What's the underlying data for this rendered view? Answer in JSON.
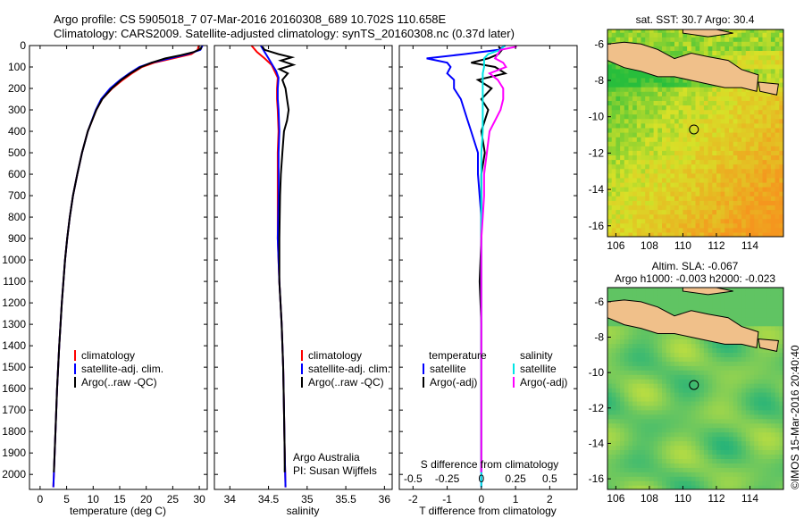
{
  "header": {
    "title_line1": "Argo profile: CS 5905018_7 07-Mar-2016 20160308_689 10.702S 110.658E",
    "title_line2": "Climatology: CARS2009. Satellite-adjusted climatology: synTS_20160308.nc (0.37d later)"
  },
  "depth_axis": {
    "ticks": [
      0,
      100,
      200,
      300,
      400,
      500,
      600,
      700,
      800,
      900,
      1000,
      1100,
      1200,
      1300,
      1400,
      1500,
      1600,
      1700,
      1800,
      1900,
      2000
    ],
    "range": [
      0,
      2070
    ],
    "inverted": true
  },
  "colors": {
    "climatology": "#ff0000",
    "satellite": "#0000ff",
    "argo": "#000000",
    "cyan": "#00e5e5",
    "magenta": "#ff00ff",
    "land": "#f0c08a"
  },
  "panels": {
    "temperature": {
      "xlabel": "temperature (deg C)",
      "xticks": [
        0,
        5,
        10,
        15,
        20,
        25,
        30
      ],
      "xlim": [
        -2,
        31.5
      ],
      "legend": [
        "climatology",
        "satellite-adj. clim.",
        "Argo(..raw -QC)"
      ]
    },
    "salinity": {
      "xlabel": "salinity",
      "xticks": [
        "34",
        "34.5",
        "35",
        "35.5",
        "36"
      ],
      "xlim": [
        33.8,
        36.1
      ],
      "legend": [
        "climatology",
        "satellite-adj. clim.",
        "Argo(..raw -QC)"
      ],
      "note1": "Argo Australia",
      "note2": "PI: Susan Wijffels"
    },
    "difference": {
      "xlabel": "T difference from climatology",
      "top_label": "S difference from climatology",
      "top_ticks": [
        "-0.5",
        "-0.25",
        "0",
        "0.25",
        "0.5"
      ],
      "bottom_ticks": [
        "-2",
        "-1",
        "0",
        "1",
        "2"
      ],
      "xlim": [
        -2.4,
        2.8
      ],
      "legend_temperature_head": "temperature",
      "legend_salinity_head": "salinity",
      "legend_temperature": [
        "satellite",
        "Argo(-adj)"
      ],
      "legend_salinity": [
        "satellite",
        "Argo(-adj)"
      ]
    }
  },
  "maps": {
    "sst": {
      "title": "sat. SST: 30.7  Argo: 30.4"
    },
    "sla": {
      "title_line1": "Altim. SLA: -0.067",
      "title_line2": "Argo h1000: -0.003  h2000: -0.023"
    },
    "xticks": [
      "106",
      "108",
      "110",
      "112",
      "114"
    ],
    "yticks": [
      "-6",
      "-8",
      "-10",
      "-12",
      "-14",
      "-16"
    ],
    "lon_range": [
      105.5,
      116
    ],
    "lat_range": [
      -16.6,
      -5.2
    ],
    "float_position": {
      "lon": 110.658,
      "lat": -10.702
    }
  },
  "credit": "©IMOS 15-Mar-2016 20:40:40",
  "chart_data": [
    {
      "type": "line",
      "ylabel": "",
      "xlabel": "temperature (deg C)",
      "xlim": [
        -2,
        31.5
      ],
      "ylim": [
        2070,
        0
      ],
      "series": [
        {
          "name": "climatology",
          "depth": [
            0,
            20,
            40,
            60,
            80,
            100,
            130,
            160,
            200,
            250,
            300,
            400,
            500,
            600,
            700,
            800,
            900,
            1000,
            1200,
            1400,
            1600,
            1800,
            2000,
            2060
          ],
          "values": [
            29.9,
            29.7,
            28.5,
            25.0,
            21.5,
            19.2,
            17.3,
            15.6,
            13.6,
            11.7,
            10.6,
            9.0,
            7.9,
            7.0,
            6.2,
            5.6,
            5.1,
            4.7,
            4.1,
            3.6,
            3.2,
            2.9,
            2.6,
            2.5
          ]
        },
        {
          "name": "satellite-adj. clim.",
          "depth": [
            0,
            20,
            40,
            60,
            80,
            100,
            130,
            160,
            200,
            250,
            300,
            400,
            500,
            600,
            700,
            800,
            900,
            1000,
            1200,
            1400,
            1600,
            1800,
            2000,
            2060
          ],
          "values": [
            30.6,
            30.2,
            27.8,
            24.4,
            21.0,
            18.7,
            16.8,
            15.1,
            13.2,
            11.5,
            10.5,
            9.0,
            7.9,
            7.0,
            6.2,
            5.6,
            5.1,
            4.7,
            4.1,
            3.6,
            3.2,
            2.9,
            2.6,
            2.5
          ]
        },
        {
          "name": "Argo(..raw -QC)",
          "depth": [
            5,
            15,
            30,
            45,
            60,
            80,
            100,
            130,
            160,
            200,
            250,
            300,
            400,
            500,
            600,
            700,
            800,
            900,
            1000,
            1200,
            1400,
            1600,
            1800,
            1990
          ],
          "values": [
            30.4,
            30.3,
            29.0,
            26.5,
            23.6,
            21.0,
            19.0,
            17.0,
            15.3,
            13.5,
            11.7,
            10.6,
            9.0,
            7.9,
            7.0,
            6.2,
            5.6,
            5.1,
            4.7,
            4.1,
            3.6,
            3.2,
            2.9,
            2.6
          ]
        }
      ]
    },
    {
      "type": "line",
      "xlabel": "salinity",
      "xlim": [
        33.8,
        36.1
      ],
      "ylim": [
        2070,
        0
      ],
      "series": [
        {
          "name": "climatology",
          "depth": [
            0,
            30,
            60,
            90,
            120,
            150,
            200,
            250,
            300,
            400,
            500,
            700,
            900,
            1100,
            1300,
            1500,
            1700,
            1900,
            2060
          ],
          "values": [
            34.28,
            34.35,
            34.45,
            34.54,
            34.58,
            34.62,
            34.61,
            34.61,
            34.62,
            34.63,
            34.62,
            34.62,
            34.62,
            34.64,
            34.67,
            34.69,
            34.7,
            34.71,
            34.72
          ]
        },
        {
          "name": "satellite-adj. clim.",
          "depth": [
            0,
            30,
            60,
            90,
            120,
            150,
            200,
            250,
            300,
            400,
            500,
            700,
            900,
            1100,
            1300,
            1500,
            1700,
            1900,
            2060
          ],
          "values": [
            34.4,
            34.45,
            34.5,
            34.55,
            34.6,
            34.63,
            34.62,
            34.62,
            34.63,
            34.64,
            34.63,
            34.63,
            34.62,
            34.64,
            34.67,
            34.69,
            34.7,
            34.71,
            34.72
          ]
        },
        {
          "name": "Argo(..raw -QC)",
          "depth": [
            5,
            20,
            40,
            55,
            70,
            90,
            110,
            130,
            160,
            200,
            250,
            300,
            350,
            400,
            500,
            600,
            700,
            900,
            1100,
            1300,
            1500,
            1700,
            1900,
            1990
          ],
          "values": [
            34.42,
            34.45,
            34.63,
            34.8,
            34.66,
            34.82,
            34.64,
            34.75,
            34.68,
            34.72,
            34.74,
            34.76,
            34.74,
            34.7,
            34.68,
            34.66,
            34.65,
            34.64,
            34.64,
            34.67,
            34.69,
            34.7,
            34.71,
            34.71
          ]
        }
      ]
    },
    {
      "type": "line",
      "xlabel": "T difference from climatology",
      "xlim": [
        -2.4,
        2.8
      ],
      "ylim": [
        2070,
        0
      ],
      "series": [
        {
          "name": "temperature satellite",
          "depth": [
            0,
            20,
            40,
            60,
            80,
            100,
            130,
            160,
            200,
            250,
            300,
            350,
            400,
            450,
            500,
            600,
            700,
            800,
            900,
            1000,
            1200,
            1400,
            1600,
            1800,
            2000,
            2060
          ],
          "values": [
            0.7,
            0.5,
            -0.5,
            -1.6,
            -1.0,
            -0.9,
            -1.0,
            -0.8,
            -0.8,
            -0.6,
            -0.5,
            -0.4,
            -0.3,
            -0.2,
            -0.1,
            -0.1,
            -0.05,
            0,
            0,
            0,
            0,
            0,
            0,
            0,
            0,
            0
          ]
        },
        {
          "name": "temperature Argo(-adj)",
          "depth": [
            5,
            20,
            40,
            60,
            80,
            100,
            130,
            160,
            200,
            250,
            300,
            400,
            500,
            600,
            700,
            900,
            1100,
            1300,
            1500,
            1700,
            1900,
            1990
          ],
          "values": [
            0.5,
            0.6,
            0.5,
            0.2,
            -0.3,
            0.4,
            0.7,
            -0.1,
            0.3,
            0.0,
            0.2,
            0.0,
            0.1,
            0.0,
            0.0,
            0.0,
            -0.05,
            0.0,
            0.0,
            0.0,
            0.0,
            0.0
          ]
        },
        {
          "name": "salinity satellite",
          "depth": [
            0,
            20,
            40,
            60,
            80,
            100,
            130,
            160,
            200,
            250,
            300,
            400,
            500,
            600,
            700,
            800,
            900,
            1000,
            1200,
            1400,
            1600,
            1800,
            2000,
            2060
          ],
          "values": [
            0.17,
            0.14,
            0.05,
            0.02,
            0.02,
            0.02,
            0.01,
            0.01,
            0.01,
            0.01,
            0.01,
            0.01,
            0.0,
            0.0,
            0.0,
            0.0,
            0.0,
            0.0,
            0.0,
            0.0,
            0.0,
            0.0,
            0.0,
            0.0
          ]
        },
        {
          "name": "salinity Argo(-adj)",
          "depth": [
            5,
            20,
            40,
            60,
            80,
            100,
            130,
            160,
            200,
            250,
            300,
            400,
            500,
            600,
            700,
            800,
            900,
            1000,
            1200,
            1400,
            1600,
            1800,
            1990
          ],
          "values": [
            0.26,
            0.14,
            0.12,
            0.1,
            0.16,
            0.18,
            0.06,
            0.12,
            0.16,
            0.16,
            0.14,
            0.06,
            0.04,
            0.02,
            0.02,
            0.01,
            0.0,
            0.0,
            0.0,
            0.0,
            0.0,
            0.0,
            0.0
          ]
        }
      ]
    },
    {
      "type": "heatmap",
      "title": "sat. SST: 30.7  Argo: 30.4",
      "xlim": [
        105.5,
        116
      ],
      "ylim": [
        -16.6,
        -5.2
      ]
    },
    {
      "type": "heatmap",
      "title": "Altim. SLA: -0.067",
      "xlim": [
        105.5,
        116
      ],
      "ylim": [
        -16.6,
        -5.2
      ]
    }
  ]
}
